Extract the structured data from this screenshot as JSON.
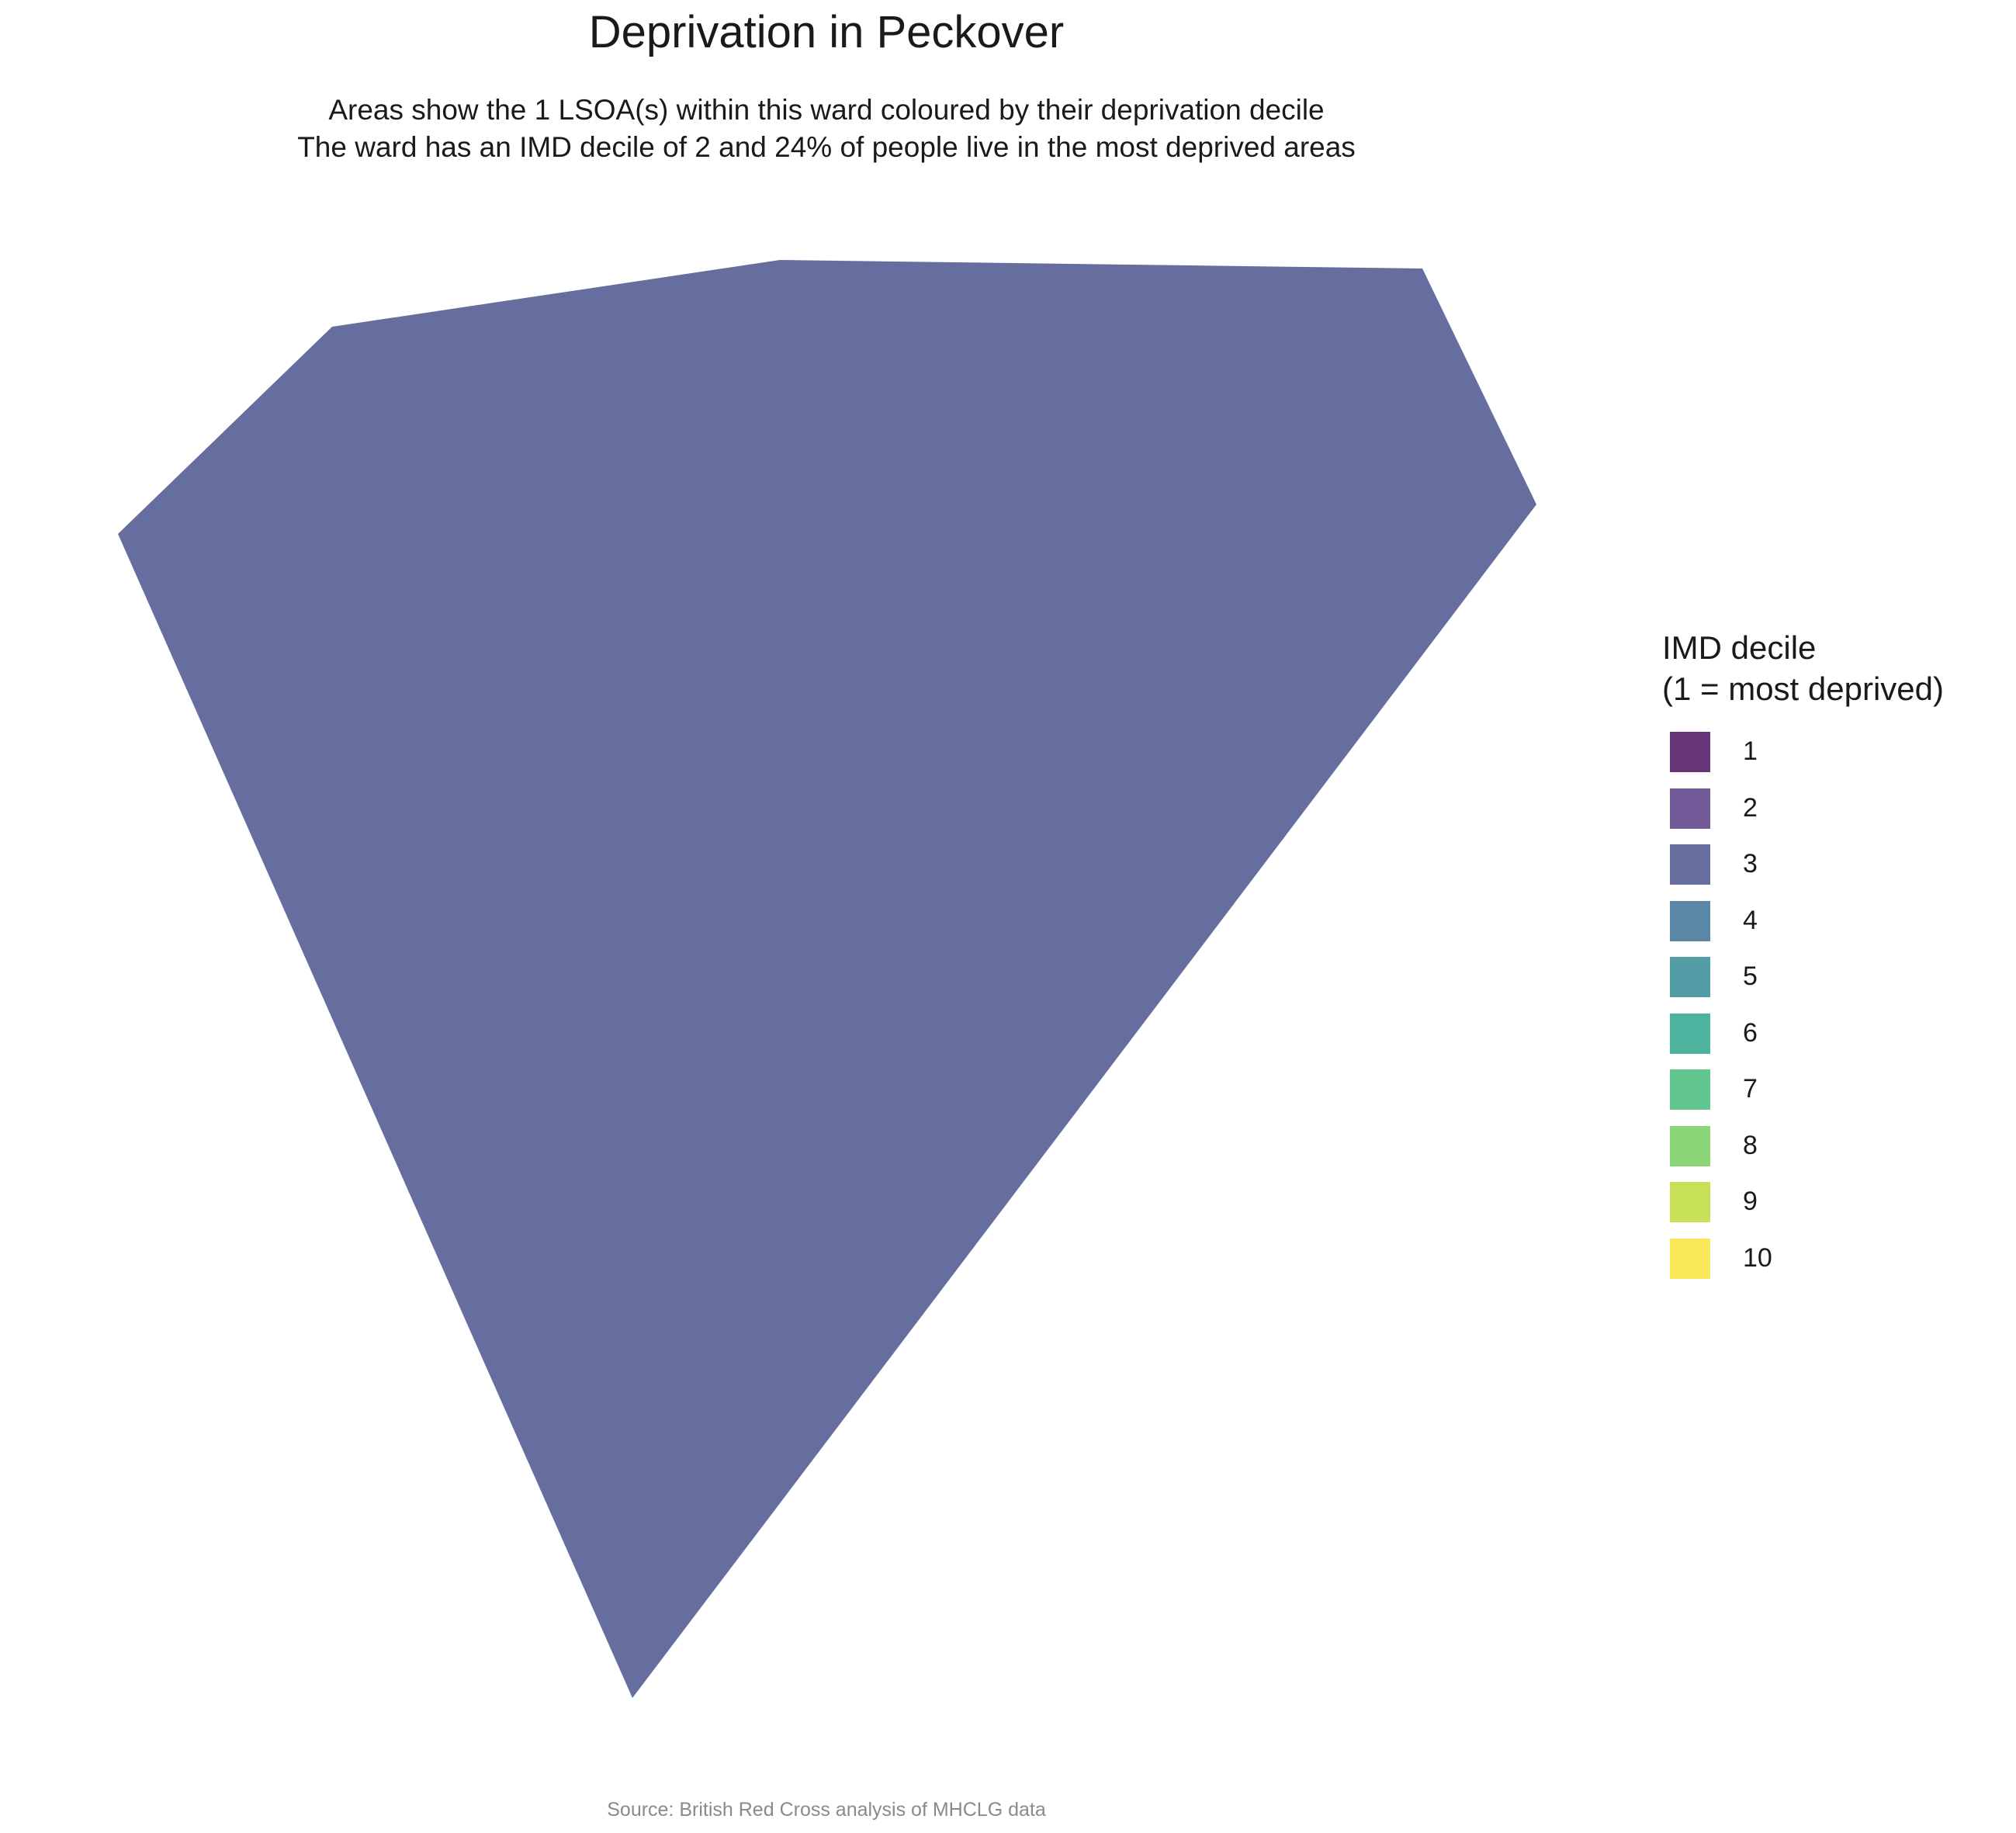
{
  "title": "Deprivation in Peckover",
  "subtitle": {
    "line1": "Areas show the 1 LSOA(s) within this ward coloured by their deprivation decile",
    "line2": "The ward has an IMD decile of 2 and 24% of people live in the most deprived areas"
  },
  "map": {
    "areas": [
      {
        "name": "LSOA",
        "decile": 3,
        "fill": "#656e9f"
      }
    ]
  },
  "legend": {
    "title_line1": "IMD decile",
    "title_line2": "(1 = most deprived)",
    "items": [
      {
        "label": "1",
        "color": "#693579"
      },
      {
        "label": "2",
        "color": "#725998"
      },
      {
        "label": "3",
        "color": "#656e9f"
      },
      {
        "label": "4",
        "color": "#5a87a6"
      },
      {
        "label": "5",
        "color": "#539da7"
      },
      {
        "label": "6",
        "color": "#4db29e"
      },
      {
        "label": "7",
        "color": "#61c690"
      },
      {
        "label": "8",
        "color": "#8ad577"
      },
      {
        "label": "9",
        "color": "#c6e158"
      },
      {
        "label": "10",
        "color": "#fbe75a"
      }
    ]
  },
  "caption": "Source: British Red Cross analysis of MHCLG data"
}
